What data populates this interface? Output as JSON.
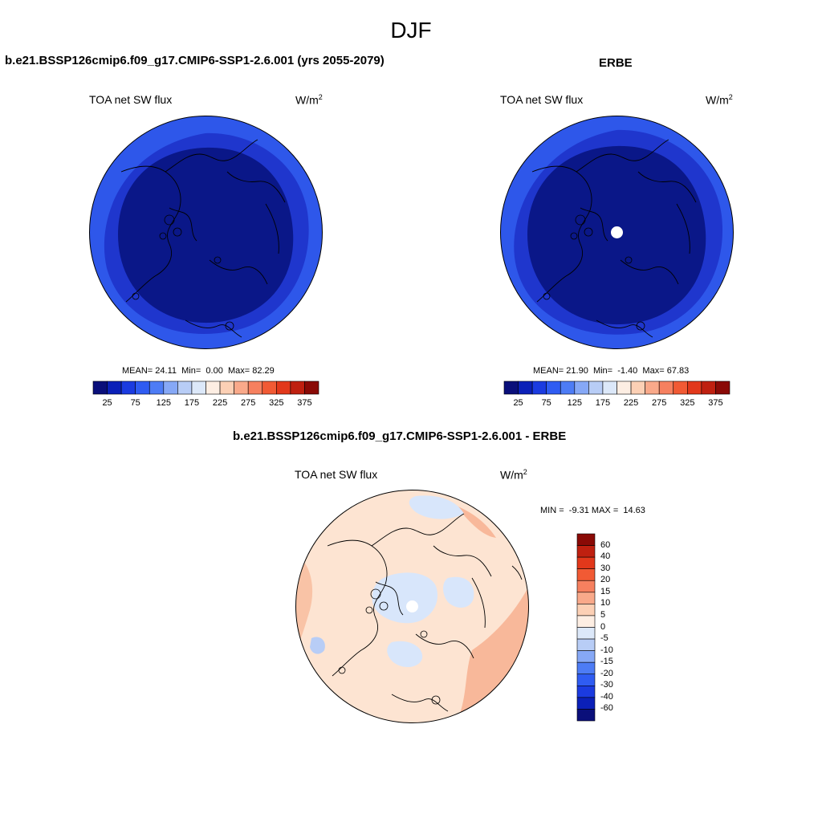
{
  "figure": {
    "title": "DJF",
    "colors": {
      "map_dark": "#0a1788",
      "map_mid": "#1f36cd",
      "map_outer": "#2e57ea",
      "diff_base": "#fde4d2",
      "diff_blue": "#d8e6fb"
    }
  },
  "panels": [
    {
      "title": "b.e21.BSSP126cmip6.f09_g17.CMIP6-SSP1-2.6.001 (yrs 2055-2079)",
      "variable": "TOA net SW flux",
      "units_base": "W/m",
      "units_exp": "2",
      "stats": {
        "mean_label": "MEAN=",
        "mean": "24.11",
        "min_label": "Min=",
        "min": "0.00",
        "max_label": "Max=",
        "max": "82.29"
      },
      "has_pole_hole": false
    },
    {
      "title": "ERBE",
      "variable": "TOA net SW flux",
      "units_base": "W/m",
      "units_exp": "2",
      "stats": {
        "mean_label": "MEAN=",
        "mean": "21.90",
        "min_label": "Min=",
        "min": "-1.40",
        "max_label": "Max=",
        "max": "67.83"
      },
      "has_pole_hole": true
    }
  ],
  "colorbar_horizontal": {
    "colors": [
      "#0a0f7a",
      "#0b20b8",
      "#1b3be0",
      "#2f5cf2",
      "#4d7cf5",
      "#86a8f6",
      "#b8cdf6",
      "#dce8f9",
      "#fdeee3",
      "#fcd0b5",
      "#f9a98a",
      "#f6805f",
      "#f15a34",
      "#e2381b",
      "#bf2010",
      "#8a0a06"
    ],
    "ticks": [
      "25",
      "75",
      "125",
      "175",
      "225",
      "275",
      "325",
      "375"
    ]
  },
  "diff_panel": {
    "title": "b.e21.BSSP126cmip6.f09_g17.CMIP6-SSP1-2.6.001 - ERBE",
    "variable": "TOA net SW flux",
    "units_base": "W/m",
    "units_exp": "2",
    "minmax": {
      "min_label": "MIN =",
      "min": "-9.31",
      "max_label": "MAX =",
      "max": "14.63"
    },
    "colorbar": {
      "colors": [
        "#8a0a06",
        "#bf2010",
        "#e2381b",
        "#f15a34",
        "#f6805f",
        "#f9a98a",
        "#fcd0b5",
        "#fdeee3",
        "#dce8f9",
        "#b8cdf6",
        "#86a8f6",
        "#4d7cf5",
        "#2f5cf2",
        "#1b3be0",
        "#0b20b8",
        "#0a0f7a"
      ],
      "ticks": [
        "60",
        "40",
        "30",
        "20",
        "15",
        "10",
        "5",
        "0",
        "-5",
        "-10",
        "-15",
        "-20",
        "-30",
        "-40",
        "-60"
      ]
    }
  }
}
